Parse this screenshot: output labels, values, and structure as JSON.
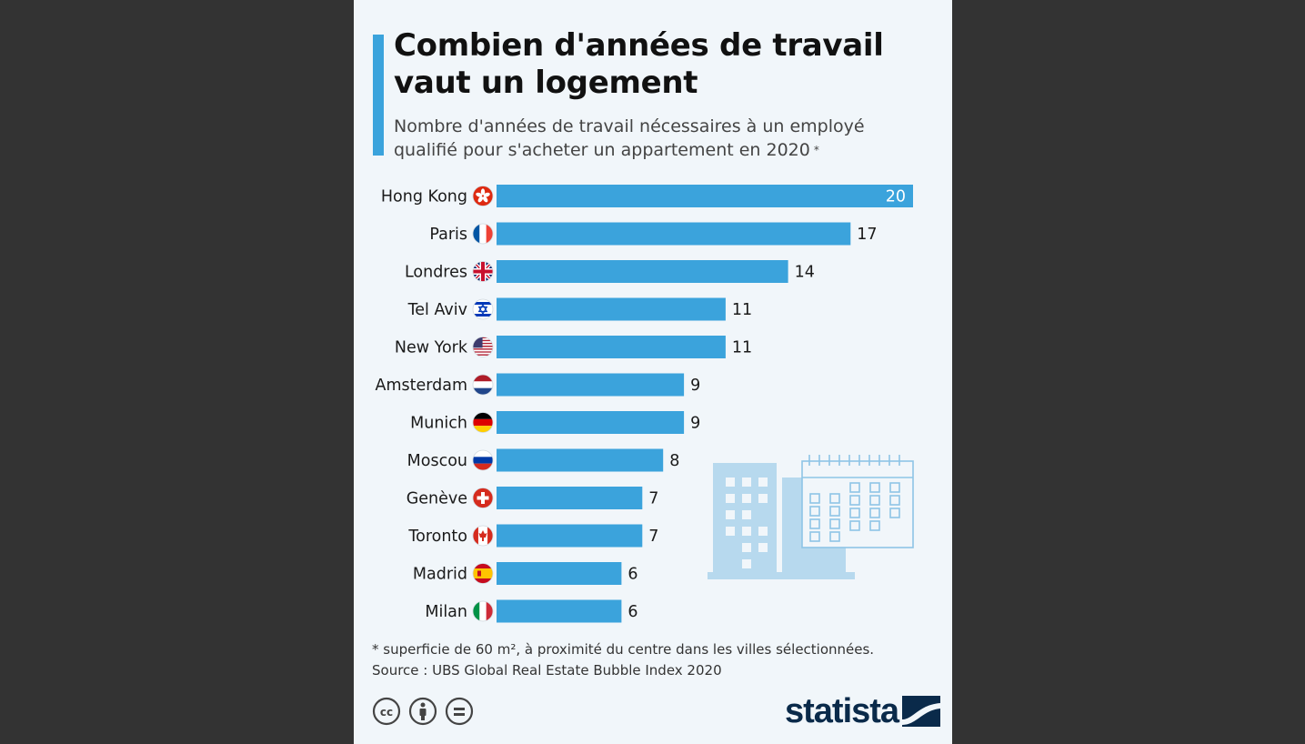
{
  "header": {
    "title": "Combien d'années de travail vaut un logement",
    "subtitle": "Nombre d'années de travail nécessaires à un employé qualifié pour s'acheter un appartement en 2020",
    "subtitle_asterisk": "*"
  },
  "chart_data": {
    "type": "bar",
    "orientation": "horizontal",
    "title": "Combien d'années de travail vaut un logement",
    "subtitle": "Nombre d'années de travail nécessaires à un employé qualifié pour s'acheter un appartement en 2020",
    "categories": [
      "Hong Kong",
      "Paris",
      "Londres",
      "Tel Aviv",
      "New York",
      "Amsterdam",
      "Munich",
      "Moscou",
      "Genève",
      "Toronto",
      "Madrid",
      "Milan"
    ],
    "values": [
      20,
      17,
      14,
      11,
      11,
      9,
      9,
      8,
      7,
      7,
      6,
      6
    ],
    "flags": [
      "hong-kong-flag-icon",
      "france-flag-icon",
      "uk-flag-icon",
      "israel-flag-icon",
      "usa-flag-icon",
      "netherlands-flag-icon",
      "germany-flag-icon",
      "russia-flag-icon",
      "switzerland-flag-icon",
      "canada-flag-icon",
      "spain-flag-icon",
      "italy-flag-icon"
    ],
    "xlim": [
      0,
      20
    ],
    "grid": false,
    "legend": "none",
    "bar_color": "#3ba3dc"
  },
  "notes": {
    "footnote": "* superficie de 60 m², à proximité du centre dans les villes sélectionnées.",
    "source": "Source : UBS Global Real Estate Bubble Index 2020"
  },
  "brand": {
    "logo_text": "statista",
    "license_icons": [
      "cc-icon",
      "attribution-icon",
      "no-derivatives-icon"
    ]
  },
  "colors": {
    "accent": "#3ba3dc",
    "background": "#f1f6fa",
    "page": "#333333",
    "decoration": "#b7d9ee",
    "logo": "#0a2a4a"
  }
}
